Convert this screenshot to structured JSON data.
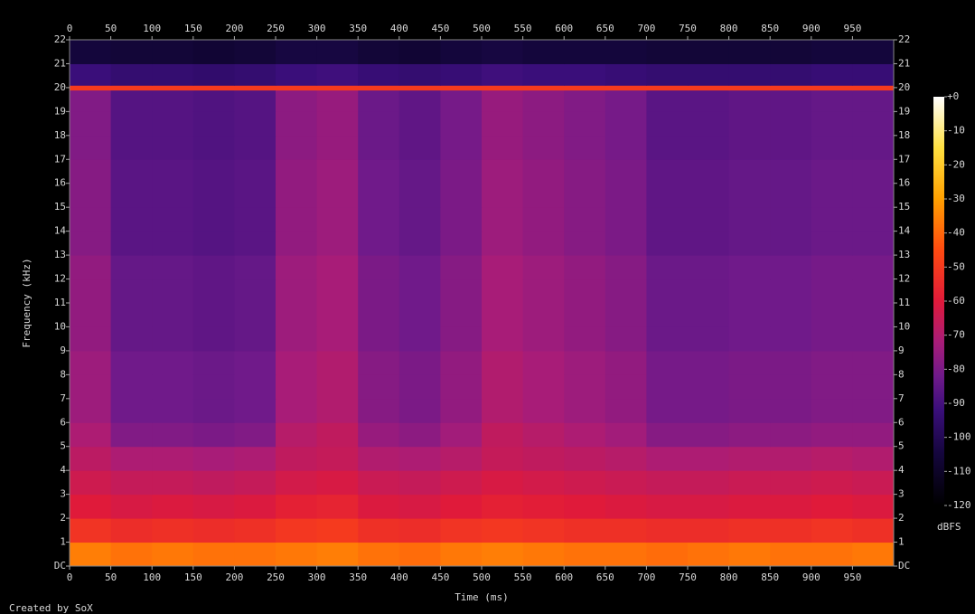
{
  "chart_data": {
    "type": "spectrogram",
    "xlabel": "Time (ms)",
    "ylabel": "Frequency (kHz)",
    "credit": "Created by SoX",
    "colorbar_label": "dBFS",
    "xlim": [
      0,
      1000
    ],
    "ylim": [
      0,
      22
    ],
    "zlim": [
      -120,
      0
    ],
    "xticks": [
      0,
      50,
      100,
      150,
      200,
      250,
      300,
      350,
      400,
      450,
      500,
      550,
      600,
      650,
      700,
      750,
      800,
      850,
      900,
      950
    ],
    "yticks": [
      {
        "value": 0,
        "label": "DC"
      },
      1,
      2,
      3,
      4,
      5,
      6,
      7,
      8,
      9,
      10,
      11,
      12,
      13,
      14,
      15,
      16,
      17,
      18,
      19,
      20,
      21,
      22
    ],
    "zticks": [
      {
        "value": 0,
        "label": "+0"
      },
      -10,
      -20,
      -30,
      -40,
      -50,
      -60,
      -70,
      -80,
      -90,
      -100,
      -110,
      -120
    ],
    "colorscale": [
      [
        -120,
        "#000000"
      ],
      [
        -105,
        "#14063c"
      ],
      [
        -92,
        "#3a0e7a"
      ],
      [
        -82,
        "#701a8a"
      ],
      [
        -72,
        "#a81c78"
      ],
      [
        -60,
        "#e01a3a"
      ],
      [
        -45,
        "#ff4a10"
      ],
      [
        -30,
        "#ffa000"
      ],
      [
        -15,
        "#ffe040"
      ],
      [
        0,
        "#ffffff"
      ]
    ],
    "x_bins": [
      0,
      50,
      100,
      150,
      200,
      250,
      300,
      350,
      400,
      450,
      500,
      550,
      600,
      650,
      700,
      750,
      800,
      850,
      900,
      950,
      1000
    ],
    "y_bins": [
      0,
      1,
      2,
      3,
      4,
      5,
      6,
      7,
      8,
      9,
      10,
      11,
      12,
      13,
      14,
      15,
      16,
      17,
      18,
      19,
      19.9,
      20.1,
      21,
      22
    ],
    "values": [
      [
        -36,
        -38,
        -37,
        -38,
        -38,
        -37,
        -36,
        -38,
        -39,
        -37,
        -36,
        -37,
        -38,
        -38,
        -39,
        -38,
        -37,
        -38,
        -38,
        -37
      ],
      [
        -52,
        -54,
        -53,
        -54,
        -53,
        -51,
        -50,
        -53,
        -54,
        -52,
        -51,
        -52,
        -53,
        -53,
        -54,
        -54,
        -53,
        -53,
        -52,
        -53
      ],
      [
        -60,
        -62,
        -61,
        -62,
        -61,
        -58,
        -57,
        -61,
        -62,
        -60,
        -58,
        -59,
        -60,
        -61,
        -62,
        -62,
        -61,
        -61,
        -60,
        -61
      ],
      [
        -64,
        -66,
        -66,
        -67,
        -66,
        -63,
        -62,
        -65,
        -66,
        -64,
        -62,
        -63,
        -64,
        -65,
        -66,
        -66,
        -65,
        -65,
        -64,
        -65
      ],
      [
        -68,
        -71,
        -71,
        -72,
        -71,
        -67,
        -66,
        -70,
        -71,
        -69,
        -66,
        -67,
        -68,
        -69,
        -71,
        -71,
        -70,
        -70,
        -69,
        -70
      ],
      [
        -71,
        -79,
        -79,
        -80,
        -79,
        -69,
        -67,
        -75,
        -77,
        -73,
        -67,
        -69,
        -71,
        -73,
        -78,
        -78,
        -77,
        -77,
        -76,
        -76
      ],
      [
        -74,
        -82,
        -82,
        -83,
        -82,
        -72,
        -70,
        -78,
        -80,
        -76,
        -70,
        -72,
        -74,
        -76,
        -81,
        -81,
        -80,
        -80,
        -79,
        -79
      ],
      [
        -74,
        -82,
        -82,
        -83,
        -82,
        -72,
        -70,
        -78,
        -80,
        -76,
        -70,
        -72,
        -74,
        -76,
        -81,
        -81,
        -80,
        -80,
        -79,
        -79
      ],
      [
        -74,
        -82,
        -82,
        -83,
        -82,
        -72,
        -70,
        -78,
        -80,
        -76,
        -70,
        -72,
        -74,
        -76,
        -81,
        -81,
        -80,
        -80,
        -79,
        -79
      ],
      [
        -76,
        -84,
        -84,
        -85,
        -84,
        -74,
        -72,
        -80,
        -82,
        -78,
        -72,
        -74,
        -76,
        -78,
        -83,
        -83,
        -82,
        -82,
        -81,
        -81
      ],
      [
        -76,
        -84,
        -84,
        -85,
        -84,
        -74,
        -72,
        -80,
        -82,
        -78,
        -72,
        -74,
        -76,
        -78,
        -83,
        -83,
        -82,
        -82,
        -81,
        -81
      ],
      [
        -76,
        -84,
        -84,
        -85,
        -84,
        -74,
        -72,
        -80,
        -82,
        -78,
        -72,
        -74,
        -76,
        -78,
        -83,
        -83,
        -82,
        -82,
        -81,
        -81
      ],
      [
        -76,
        -84,
        -84,
        -85,
        -84,
        -74,
        -72,
        -80,
        -82,
        -78,
        -72,
        -74,
        -76,
        -78,
        -83,
        -83,
        -82,
        -82,
        -81,
        -81
      ],
      [
        -78,
        -86,
        -86,
        -87,
        -86,
        -76,
        -74,
        -82,
        -84,
        -80,
        -74,
        -76,
        -78,
        -80,
        -85,
        -85,
        -84,
        -84,
        -83,
        -83
      ],
      [
        -78,
        -86,
        -86,
        -87,
        -86,
        -76,
        -74,
        -82,
        -84,
        -80,
        -74,
        -76,
        -78,
        -80,
        -85,
        -85,
        -84,
        -84,
        -83,
        -83
      ],
      [
        -78,
        -86,
        -86,
        -87,
        -86,
        -76,
        -74,
        -82,
        -84,
        -80,
        -74,
        -76,
        -78,
        -80,
        -85,
        -85,
        -84,
        -84,
        -83,
        -83
      ],
      [
        -78,
        -86,
        -86,
        -87,
        -86,
        -76,
        -74,
        -82,
        -84,
        -80,
        -74,
        -76,
        -78,
        -80,
        -85,
        -85,
        -84,
        -84,
        -83,
        -83
      ],
      [
        -79,
        -87,
        -87,
        -88,
        -87,
        -77,
        -75,
        -83,
        -85,
        -81,
        -75,
        -77,
        -79,
        -81,
        -86,
        -86,
        -85,
        -85,
        -84,
        -84
      ],
      [
        -79,
        -87,
        -87,
        -88,
        -87,
        -77,
        -75,
        -83,
        -85,
        -81,
        -75,
        -77,
        -79,
        -81,
        -86,
        -86,
        -85,
        -85,
        -84,
        -84
      ],
      [
        -79,
        -87,
        -87,
        -88,
        -87,
        -77,
        -75,
        -83,
        -85,
        -81,
        -75,
        -77,
        -79,
        -81,
        -86,
        -86,
        -85,
        -85,
        -84,
        -84
      ],
      [
        -50,
        -50,
        -50,
        -50,
        -50,
        -50,
        -50,
        -50,
        -50,
        -50,
        -50,
        -50,
        -50,
        -50,
        -50,
        -50,
        -50,
        -50,
        -50,
        -50
      ],
      [
        -92,
        -94,
        -94,
        -95,
        -94,
        -92,
        -91,
        -93,
        -94,
        -93,
        -91,
        -92,
        -92,
        -93,
        -94,
        -94,
        -94,
        -94,
        -93,
        -93
      ],
      [
        -105,
        -106,
        -106,
        -107,
        -106,
        -104,
        -104,
        -106,
        -107,
        -105,
        -104,
        -105,
        -105,
        -105,
        -106,
        -106,
        -106,
        -106,
        -105,
        -105
      ]
    ]
  }
}
